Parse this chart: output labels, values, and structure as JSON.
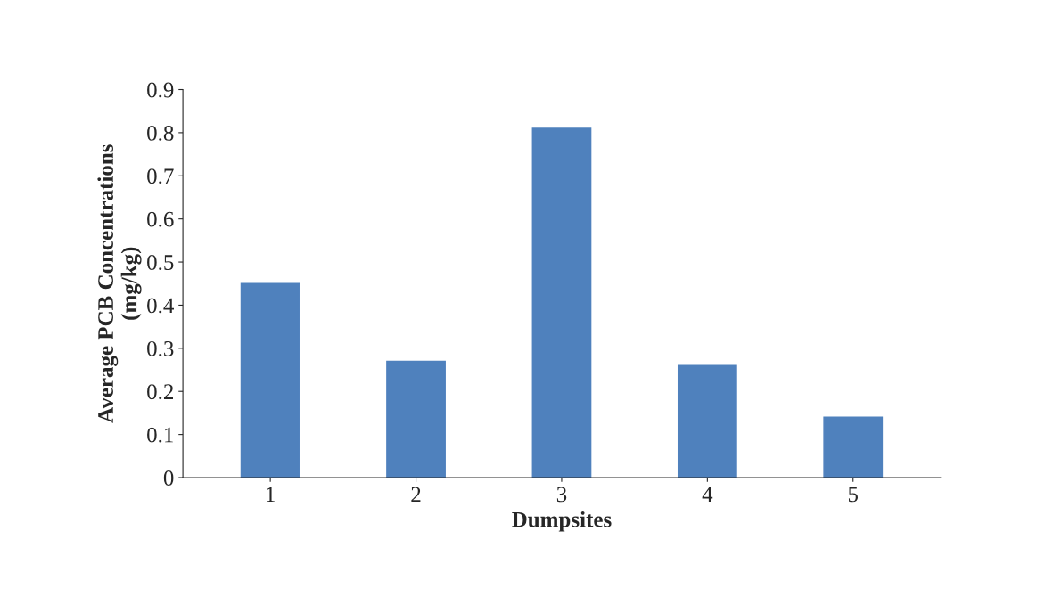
{
  "chart_data": {
    "type": "bar",
    "xlabel": "Dumpsites",
    "ylabel": "Average PCB Concentrations\n(mg/kg)",
    "categories": [
      "1",
      "2",
      "3",
      "4",
      "5"
    ],
    "values": [
      0.45,
      0.27,
      0.81,
      0.26,
      0.14
    ],
    "color": "#4f81bd",
    "ylim": [
      0,
      0.9
    ],
    "yticks": [
      0,
      0.1,
      0.2,
      0.3,
      0.4,
      0.5,
      0.6,
      0.7,
      0.8,
      0.9
    ],
    "grid": false
  }
}
